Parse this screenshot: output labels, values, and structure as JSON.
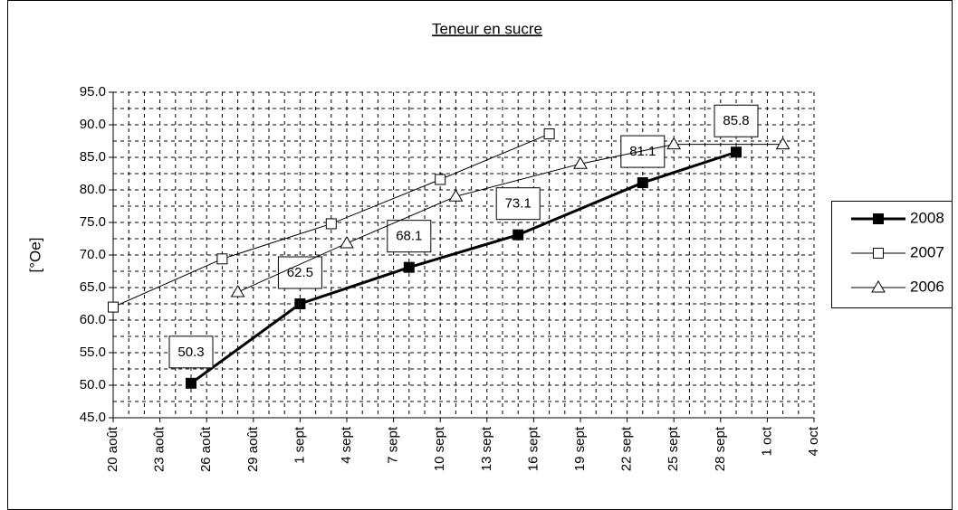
{
  "chart_data": {
    "type": "line",
    "title": "Teneur en sucre",
    "y_label": "[°Oe]",
    "series": [
      {
        "name": "2008",
        "color": "#000000",
        "marker": "filled-square",
        "x": [
          "08-25",
          "09-01",
          "09-08",
          "09-15",
          "09-23",
          "09-29"
        ],
        "values": [
          50.3,
          62.5,
          68.1,
          73.1,
          81.1,
          85.8
        ]
      },
      {
        "name": "2007",
        "color": "#000000",
        "marker": "open-square",
        "x": [
          "08-20",
          "08-27",
          "09-03",
          "09-10",
          "09-17"
        ],
        "values": [
          62.0,
          69.4,
          74.8,
          81.6,
          88.6
        ]
      },
      {
        "name": "2006",
        "color": "#000000",
        "marker": "open-triangle",
        "x": [
          "08-28",
          "09-04",
          "09-11",
          "09-19",
          "09-25",
          "10-02"
        ],
        "values": [
          64.3,
          71.8,
          79.0,
          84.0,
          87.0,
          87.0
        ]
      }
    ],
    "xlim": [
      "08-20",
      "10-04"
    ],
    "xticks": [
      {
        "value": "08-20",
        "label": "20 août"
      },
      {
        "value": "08-23",
        "label": "23 août"
      },
      {
        "value": "08-26",
        "label": "26 août"
      },
      {
        "value": "08-29",
        "label": "29 août"
      },
      {
        "value": "09-01",
        "label": "1 sept"
      },
      {
        "value": "09-04",
        "label": "4 sept"
      },
      {
        "value": "09-07",
        "label": "7 sept"
      },
      {
        "value": "09-10",
        "label": "10 sept"
      },
      {
        "value": "09-13",
        "label": "13 sept"
      },
      {
        "value": "09-16",
        "label": "16 sept"
      },
      {
        "value": "09-19",
        "label": "19 sept"
      },
      {
        "value": "09-22",
        "label": "22 sept"
      },
      {
        "value": "09-25",
        "label": "25 sept"
      },
      {
        "value": "09-28",
        "label": "28 sept"
      },
      {
        "value": "10-01",
        "label": "1 oct"
      },
      {
        "value": "10-04",
        "label": "4 oct"
      }
    ],
    "ylim": [
      45,
      95
    ],
    "yticks": [
      {
        "value": 45,
        "label": "45.0"
      },
      {
        "value": 50,
        "label": "50.0"
      },
      {
        "value": 55,
        "label": "55.0"
      },
      {
        "value": 60,
        "label": "60.0"
      },
      {
        "value": 65,
        "label": "65.0"
      },
      {
        "value": 70,
        "label": "70.0"
      },
      {
        "value": 75,
        "label": "75.0"
      },
      {
        "value": 80,
        "label": "80.0"
      },
      {
        "value": 85,
        "label": "85.0"
      },
      {
        "value": 90,
        "label": "90.0"
      },
      {
        "value": 95,
        "label": "95.0"
      }
    ],
    "grid": true,
    "data_labels_series": 0,
    "legend": "right"
  }
}
